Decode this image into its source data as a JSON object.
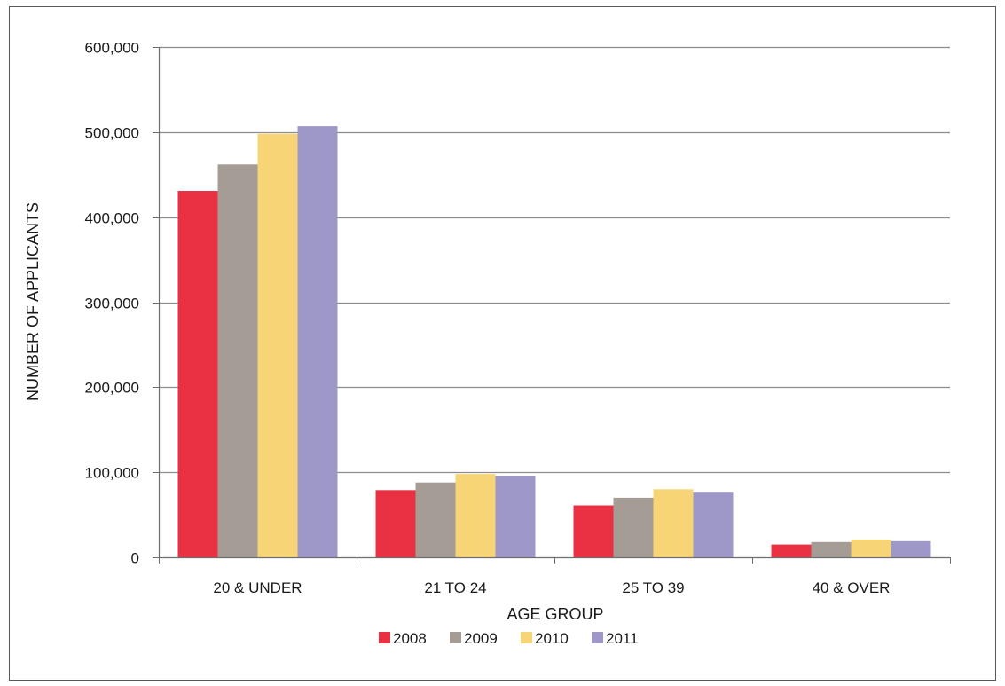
{
  "chart_data": {
    "type": "bar",
    "xlabel": "AGE GROUP",
    "ylabel": "NUMBER OF APPLICANTS",
    "categories": [
      "20 & UNDER",
      "21 TO 24",
      "25 TO 39",
      "40 & OVER"
    ],
    "ylim": [
      0,
      600000
    ],
    "yticks": [
      0,
      100000,
      200000,
      300000,
      400000,
      500000,
      600000
    ],
    "ytick_labels": [
      "0",
      "100,000",
      "200,000",
      "300,000",
      "400,000",
      "500,000",
      "600,000"
    ],
    "grid": true,
    "legend_position": "bottom",
    "series": [
      {
        "name": "2008",
        "color": "#ea3043",
        "values": [
          431000,
          79000,
          61000,
          15000
        ]
      },
      {
        "name": "2009",
        "color": "#a59d95",
        "values": [
          462000,
          88000,
          70000,
          18000
        ]
      },
      {
        "name": "2010",
        "color": "#f7d577",
        "values": [
          498000,
          98000,
          80000,
          21000
        ]
      },
      {
        "name": "2011",
        "color": "#9d98c8",
        "values": [
          507000,
          96000,
          77000,
          19000
        ]
      }
    ]
  }
}
